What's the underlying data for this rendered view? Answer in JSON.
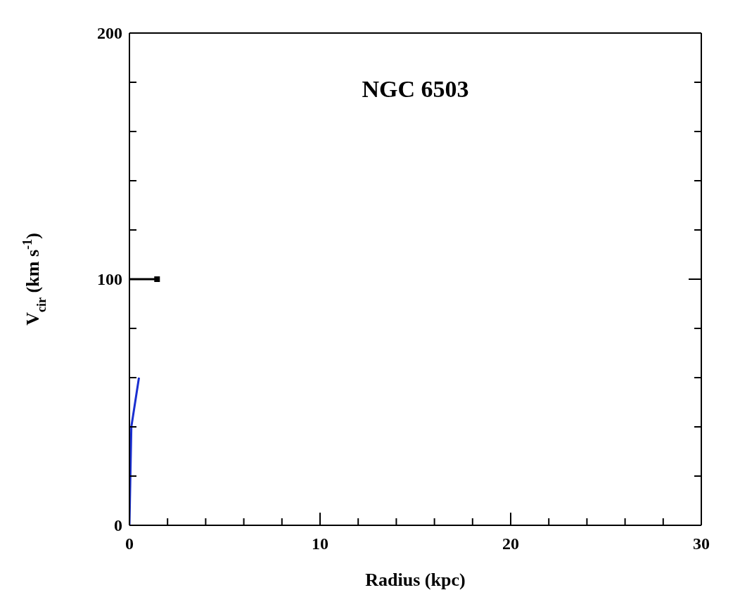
{
  "chart_data": {
    "type": "scatter",
    "title": "NGC 6503",
    "xlabel": "Radius (kpc)",
    "ylabel": "V$_{cir}$ (km s$^{-1}$)",
    "xlim": [
      0,
      30
    ],
    "ylim": [
      0,
      200
    ],
    "xticks": [
      0,
      {
        "value": 2,
        "label": null
      },
      {
        "value": 4,
        "label": null
      },
      {
        "value": 6,
        "label": null
      },
      {
        "value": 8,
        "label": null
      },
      10,
      {
        "value": 12,
        "label": null
      },
      {
        "value": 14,
        "label": null
      },
      {
        "value": 16,
        "label": null
      },
      {
        "value": 18,
        "label": null
      },
      20,
      {
        "value": 22,
        "label": null
      },
      {
        "value": 24,
        "label": null
      },
      {
        "value": 26,
        "label": null
      },
      {
        "value": 28,
        "label": null
      },
      30
    ],
    "yticks": [
      0,
      {
        "value": 20,
        "label": null
      },
      {
        "value": 40,
        "label": null
      },
      {
        "value": 60,
        "label": null
      },
      {
        "value": 80,
        "label": null
      },
      100,
      {
        "value": 120,
        "label": null
      },
      {
        "value": 140,
        "label": null
      },
      {
        "value": 160,
        "label": null
      },
      {
        "value": 180,
        "label": null
      },
      200
    ],
    "grid": false,
    "series": [
      {
        "type": "line",
        "color": "#1a2fd0",
        "x": [
          0,
          0.1,
          0.5
        ],
        "values": [
          0,
          40,
          60
        ],
        "marker": "none",
        "line_style": "solid"
      },
      {
        "color": "#000000",
        "x": [
          1.45
        ],
        "values": [
          100
        ],
        "xerrors": [
          [
            0,
            1.45
          ]
        ],
        "marker": "square"
      }
    ]
  }
}
